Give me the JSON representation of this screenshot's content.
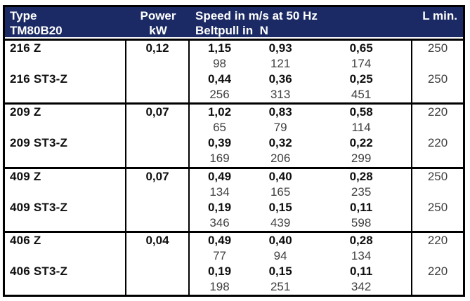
{
  "colors": {
    "header_bg": "#1b2a64",
    "header_text": "#ffffff",
    "border": "#000000",
    "bold_text": "#101010",
    "regular_text": "#404040"
  },
  "header": {
    "type_line1": "Type",
    "type_line2": "TM80B20",
    "power_line1": "Power",
    "power_line2": "kW",
    "speed_line1": "Speed in m/s at 50 Hz",
    "speed_line2": "Beltpull in  N",
    "l_label": "L min."
  },
  "groups": [
    {
      "rows": [
        {
          "type": "216 Z",
          "power": "0,12",
          "speeds": [
            "1,15",
            "0,93",
            "0,65"
          ],
          "beltpull": [
            "98",
            "121",
            "174"
          ],
          "l": "250"
        },
        {
          "type": "216 ST3-Z",
          "power": "",
          "speeds": [
            "0,44",
            "0,36",
            "0,25"
          ],
          "beltpull": [
            "256",
            "313",
            "451"
          ],
          "l": "250"
        }
      ]
    },
    {
      "rows": [
        {
          "type": "209 Z",
          "power": "0,07",
          "speeds": [
            "1,02",
            "0,83",
            "0,58"
          ],
          "beltpull": [
            "65",
            "79",
            "114"
          ],
          "l": "220"
        },
        {
          "type": "209 ST3-Z",
          "power": "",
          "speeds": [
            "0,39",
            "0,32",
            "0,22"
          ],
          "beltpull": [
            "169",
            "206",
            "299"
          ],
          "l": "220"
        }
      ]
    },
    {
      "rows": [
        {
          "type": "409 Z",
          "power": "0,07",
          "speeds": [
            "0,49",
            "0,40",
            "0,28"
          ],
          "beltpull": [
            "134",
            "165",
            "235"
          ],
          "l": "250"
        },
        {
          "type": "409 ST3-Z",
          "power": "",
          "speeds": [
            "0,19",
            "0,15",
            "0,11"
          ],
          "beltpull": [
            "346",
            "439",
            "598"
          ],
          "l": "250"
        }
      ]
    },
    {
      "rows": [
        {
          "type": "406 Z",
          "power": "0,04",
          "speeds": [
            "0,49",
            "0,40",
            "0,28"
          ],
          "beltpull": [
            "77",
            "94",
            "134"
          ],
          "l": "220"
        },
        {
          "type": "406 ST3-Z",
          "power": "",
          "speeds": [
            "0,19",
            "0,15",
            "0,11"
          ],
          "beltpull": [
            "198",
            "251",
            "342"
          ],
          "l": "220"
        }
      ]
    }
  ]
}
